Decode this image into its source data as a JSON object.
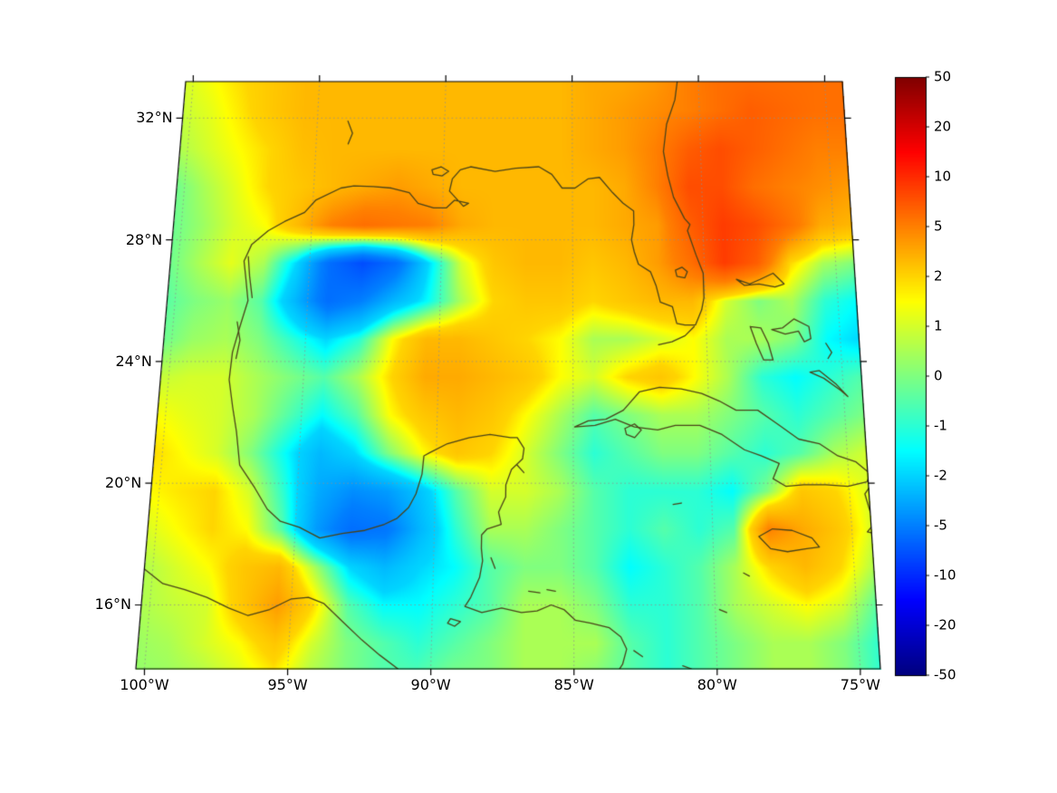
{
  "figure": {
    "background": "#ffffff"
  },
  "map": {
    "coast_color": "#4a4319",
    "gridline_color": "#8f8f8f",
    "frame_color": "#000000",
    "coastlines": [
      [
        -80.8,
        33.4,
        -80.95,
        32.6,
        -81.3,
        31.8,
        -81.45,
        30.9,
        -81.3,
        30.1,
        -81.1,
        29.4,
        -80.7,
        28.7,
        -80.5,
        28.5,
        -80.6,
        28.3,
        -80.3,
        27.5,
        -80.05,
        26.9,
        -80.05,
        26.1,
        -80.15,
        25.7,
        -80.4,
        25.2,
        -80.8,
        25.2,
        -81.1,
        25.25,
        -81.25,
        25.8,
        -81.7,
        25.95,
        -81.85,
        26.5,
        -82.05,
        26.95,
        -82.5,
        27.2,
        -82.65,
        27.6,
        -82.75,
        28.0,
        -82.65,
        28.5,
        -82.65,
        28.95,
        -83.05,
        29.2,
        -83.45,
        29.55,
        -83.95,
        30.05,
        -84.4,
        30.0,
        -84.9,
        29.7,
        -85.4,
        29.7,
        -85.8,
        30.15,
        -86.3,
        30.4,
        -87.2,
        30.35,
        -88.0,
        30.25,
        -88.95,
        30.4,
        -89.35,
        30.3,
        -89.65,
        30.0,
        -89.75,
        29.6,
        -89.2,
        29.1,
        -89.0,
        29.2,
        -89.55,
        29.3,
        -89.85,
        29.05,
        -90.35,
        29.05,
        -90.95,
        29.2,
        -91.3,
        29.55,
        -92.0,
        29.7,
        -92.7,
        29.75,
        -93.45,
        29.77,
        -93.95,
        29.7,
        -94.9,
        29.3,
        -95.3,
        28.9,
        -96.05,
        28.6,
        -96.65,
        28.3,
        -97.25,
        27.85,
        -97.5,
        27.3,
        -97.4,
        26.8,
        -97.25,
        26.0,
        -97.5,
        25.1,
        -97.7,
        24.3,
        -97.75,
        23.4,
        -97.55,
        22.5,
        -97.35,
        21.7,
        -97.15,
        20.6,
        -96.55,
        19.85,
        -96.05,
        19.15,
        -95.55,
        18.75,
        -94.85,
        18.55,
        -94.1,
        18.2,
        -93.3,
        18.35,
        -92.5,
        18.45,
        -91.8,
        18.65,
        -91.35,
        18.85,
        -90.95,
        19.2,
        -90.7,
        19.65,
        -90.5,
        20.3,
        -90.45,
        20.9,
        -90.25,
        21.0,
        -89.6,
        21.3,
        -88.8,
        21.5,
        -88.05,
        21.6,
        -87.3,
        21.5,
        -87.05,
        21.5,
        -86.8,
        21.15,
        -86.85,
        20.8,
        -87.25,
        20.45,
        -87.45,
        19.95,
        -87.45,
        19.55,
        -87.7,
        19.05,
        -87.6,
        18.65,
        -88.1,
        18.5,
        -88.3,
        18.3,
        -88.3,
        17.85,
        -88.25,
        17.45,
        -88.35,
        16.9,
        -88.65,
        16.25,
        -88.85,
        15.95,
        -88.25,
        15.75,
        -87.55,
        15.9,
        -86.85,
        15.75,
        -86.3,
        15.8,
        -85.8,
        16.0,
        -85.35,
        15.85,
        -84.95,
        15.5,
        -84.4,
        15.4,
        -83.75,
        15.25,
        -83.35,
        14.95,
        -83.15,
        14.55,
        -83.3,
        14.05,
        -83.55,
        13.7
      ],
      [
        -100.4,
        17.25,
        -99.6,
        16.7,
        -98.8,
        16.5,
        -98.0,
        16.25,
        -97.2,
        15.9,
        -96.5,
        15.65,
        -95.75,
        15.85,
        -95.0,
        16.2,
        -94.4,
        16.25,
        -93.85,
        16.05,
        -93.15,
        15.45,
        -92.45,
        14.85,
        -91.8,
        14.35,
        -91.15,
        13.9,
        -90.95,
        13.7
      ],
      [
        -84.95,
        21.85,
        -84.45,
        22.05,
        -83.8,
        22.1,
        -83.15,
        22.4,
        -82.55,
        23.0,
        -81.8,
        23.15,
        -81.0,
        23.1,
        -80.25,
        22.95,
        -79.6,
        22.7,
        -79.0,
        22.4,
        -78.2,
        22.4,
        -77.5,
        21.95,
        -76.75,
        21.45,
        -76.0,
        21.3,
        -75.35,
        20.9,
        -74.7,
        20.7,
        -74.2,
        20.3,
        -74.35,
        20.05,
        -75.05,
        19.9,
        -75.85,
        19.95,
        -76.65,
        19.95,
        -77.3,
        19.9,
        -77.75,
        20.15,
        -77.5,
        20.65,
        -78.15,
        20.9,
        -78.75,
        21.1,
        -79.55,
        21.6,
        -80.35,
        21.9,
        -81.25,
        21.9,
        -81.9,
        21.75,
        -82.75,
        21.85,
        -83.45,
        22.1,
        -84.2,
        21.9,
        -84.95,
        21.85
      ],
      [
        -83.1,
        21.8,
        -82.75,
        21.95,
        -82.5,
        21.75,
        -82.75,
        21.5,
        -83.05,
        21.6,
        -83.1,
        21.8
      ],
      [
        -78.35,
        18.25,
        -77.85,
        18.5,
        -77.15,
        18.45,
        -76.45,
        18.2,
        -76.2,
        17.9,
        -76.65,
        17.85,
        -77.35,
        17.75,
        -77.95,
        17.85,
        -78.35,
        18.25
      ],
      [
        -74.2,
        19.95,
        -74.45,
        19.65,
        -74.3,
        19.05,
        -74.2,
        18.95
      ],
      [
        -74.2,
        18.35,
        -74.45,
        18.4,
        -74.2,
        18.65
      ],
      [
        -81.4,
        19.3,
        -81.1,
        19.35
      ],
      [
        -78.8,
        26.7,
        -78.3,
        26.55,
        -77.9,
        26.7,
        -77.4,
        26.9,
        -77.0,
        26.55,
        -77.35,
        26.45,
        -77.95,
        26.55,
        -78.5,
        26.5,
        -78.8,
        26.7
      ],
      [
        -78.35,
        25.15,
        -77.95,
        25.1,
        -77.7,
        24.6,
        -77.55,
        24.05,
        -77.9,
        24.05,
        -78.15,
        24.6,
        -78.35,
        25.15
      ],
      [
        -77.55,
        25.05,
        -77.15,
        25.1,
        -76.7,
        25.4,
        -76.15,
        25.15,
        -76.1,
        24.75,
        -76.35,
        24.65,
        -76.55,
        25.0,
        -77.05,
        24.9,
        -77.55,
        25.05
      ],
      [
        -76.2,
        23.65,
        -75.7,
        23.45,
        -75.1,
        23.05,
        -74.85,
        22.85,
        -75.25,
        23.25,
        -75.85,
        23.7,
        -76.2,
        23.65
      ],
      [
        -75.55,
        24.6,
        -75.35,
        24.3,
        -75.5,
        24.1
      ],
      [
        -81.1,
        27.0,
        -80.85,
        27.1,
        -80.65,
        26.95,
        -80.75,
        26.75,
        -81.05,
        26.8,
        -81.1,
        27.0
      ],
      [
        -90.45,
        30.3,
        -90.1,
        30.4,
        -89.8,
        30.25,
        -90.05,
        30.1,
        -90.4,
        30.15,
        -90.45,
        30.3
      ],
      [
        -93.8,
        31.9,
        -93.6,
        31.5,
        -93.75,
        31.15
      ],
      [
        -87.05,
        20.6,
        -86.8,
        20.35
      ],
      [
        -86.6,
        16.45,
        -86.2,
        16.4
      ],
      [
        -85.95,
        16.5,
        -85.65,
        16.45
      ],
      [
        -89.35,
        15.55,
        -89.0,
        15.45,
        -89.2,
        15.3,
        -89.45,
        15.4,
        -89.35,
        15.55
      ],
      [
        -87.95,
        17.55,
        -87.8,
        17.2
      ],
      [
        -80.45,
        25.15,
        -80.8,
        24.85,
        -81.3,
        24.65,
        -81.8,
        24.55
      ],
      [
        -97.35,
        27.45,
        -97.25,
        26.8,
        -97.1,
        26.1
      ],
      [
        -97.6,
        25.3,
        -97.45,
        24.7,
        -97.55,
        24.1
      ],
      [
        -78.95,
        17.05,
        -78.75,
        16.95
      ],
      [
        -79.85,
        15.85,
        -79.6,
        15.75
      ],
      [
        -82.9,
        14.5,
        -82.6,
        14.3
      ],
      [
        -81.2,
        14.0,
        -80.9,
        13.9
      ]
    ]
  },
  "colorbar": {
    "tick_labels": [
      "50",
      "20",
      "10",
      "5",
      "2",
      "1",
      "0",
      "-1",
      "-2",
      "-5",
      "-10",
      "-20",
      "-50"
    ],
    "colormap": "jet"
  },
  "chart_data": {
    "type": "heatmap",
    "title": "",
    "xlabel": "",
    "ylabel": "",
    "x_name": "longitude_deg",
    "y_name": "latitude_deg",
    "projection": "conic-like trapezoid, lon -100.3..-74.3, lat 13.9..33.2",
    "extent": {
      "lon": [
        -100.3,
        -74.3
      ],
      "lat": [
        13.9,
        33.2
      ]
    },
    "colormap": "jet",
    "scale_levels": [
      -50,
      -20,
      -10,
      -5,
      -2,
      -1,
      0,
      1,
      2,
      5,
      10,
      20,
      50
    ],
    "xticks": {
      "lons": [
        -100,
        -95,
        -90,
        -85,
        -80,
        -75
      ],
      "labels": [
        "100°W",
        "95°W",
        "90°W",
        "85°W",
        "80°W",
        "75°W"
      ]
    },
    "yticks": {
      "lats": [
        32,
        28,
        24,
        20,
        16
      ],
      "labels": [
        "32°N",
        "28°N",
        "24°N",
        "20°N",
        "16°N"
      ]
    },
    "grid": {
      "lons": [
        -100.5,
        -99.25,
        -98,
        -96.75,
        -95.5,
        -94.25,
        -93,
        -91.75,
        -90.5,
        -89.25,
        -88,
        -86.75,
        -85.5,
        -84.25,
        -83,
        -81.75,
        -80.5,
        -79.25,
        -78,
        -76.75,
        -75.5,
        -74.25
      ],
      "lats": [
        33.5,
        32.25,
        31,
        29.75,
        28.5,
        27.25,
        26,
        24.75,
        23.5,
        22.25,
        21,
        19.75,
        18.5,
        17.25,
        16,
        14.75,
        13.5
      ],
      "values": [
        [
          1,
          1.5,
          2,
          2.5,
          3,
          3,
          3,
          3,
          3,
          3,
          3,
          3,
          3,
          3.5,
          3.5,
          4,
          5,
          6,
          6,
          6,
          6,
          6
        ],
        [
          0.8,
          1.2,
          1.8,
          2.5,
          3,
          3,
          3,
          3,
          3,
          3,
          3,
          3,
          3,
          3.5,
          4,
          4.5,
          5,
          6,
          7,
          6.5,
          6,
          6
        ],
        [
          0.5,
          1,
          1.5,
          2,
          2.8,
          3,
          3,
          3,
          3,
          3,
          3,
          3,
          3,
          3.5,
          4,
          5,
          7,
          8,
          7,
          6,
          5,
          5
        ],
        [
          -0.3,
          0.5,
          1.2,
          2,
          2.5,
          3,
          3.5,
          4,
          3.5,
          3,
          3,
          3,
          3,
          3,
          3.5,
          5,
          8,
          8,
          6,
          5,
          4.5,
          4
        ],
        [
          -0.3,
          0.3,
          1,
          1.5,
          3,
          5,
          6,
          5.5,
          5,
          3.5,
          3,
          3,
          3,
          3,
          3.5,
          4,
          7,
          9,
          8,
          6,
          3.5,
          3
        ],
        [
          -0.3,
          0.5,
          1.2,
          0.5,
          -2,
          -6,
          -8,
          -6,
          -2,
          1,
          2.5,
          3,
          3,
          2.5,
          3,
          4,
          6,
          9,
          7,
          2,
          0.5,
          0
        ],
        [
          -0.5,
          0,
          0.3,
          -0.5,
          -3,
          -6,
          -5,
          -3,
          -1.5,
          0.5,
          2,
          2.5,
          2.5,
          2,
          2.5,
          3,
          3,
          1,
          0,
          0.5,
          -1,
          -1.5
        ],
        [
          -0.3,
          0.3,
          0.5,
          0,
          -1,
          -2,
          -1,
          1.5,
          3,
          3,
          2.5,
          2,
          1.5,
          0.5,
          0.5,
          1,
          1.5,
          0.5,
          0.5,
          0,
          -1.5,
          -2
        ],
        [
          0.8,
          1,
          1,
          0.5,
          0,
          -0.5,
          0.5,
          2,
          3.5,
          3.5,
          3,
          2.5,
          1.5,
          1,
          2,
          2.5,
          1.5,
          0.5,
          -1,
          -1.5,
          -1,
          -0.5
        ],
        [
          1.5,
          1.2,
          1,
          0.5,
          -0.5,
          -1.5,
          -0.5,
          1.5,
          2.5,
          3,
          2.5,
          1.5,
          0.5,
          -0.5,
          0,
          0.5,
          0.5,
          0,
          -0.5,
          -1,
          -0.5,
          0
        ],
        [
          2,
          1.5,
          1,
          0,
          -1.5,
          -3,
          -2,
          0,
          1.5,
          2.5,
          2,
          1,
          0,
          -1,
          -0.5,
          0,
          0,
          -0.5,
          -1,
          -0.5,
          0.5,
          1
        ],
        [
          1.5,
          1.8,
          2,
          1,
          -1,
          -3.5,
          -4.5,
          -4,
          -2.5,
          -0.5,
          1,
          1,
          0.5,
          -0.5,
          -1,
          -1,
          -1,
          -1.5,
          0,
          2.5,
          2,
          1
        ],
        [
          1,
          1.5,
          2,
          1.5,
          -0.5,
          -4,
          -6,
          -5.5,
          -3,
          -1,
          0.5,
          0.5,
          0,
          -0.5,
          -1,
          -0.5,
          -1,
          -0.5,
          5,
          3.5,
          2.5,
          1
        ],
        [
          0.5,
          1,
          1.5,
          2.5,
          3,
          0.5,
          -2,
          -3,
          -2,
          -1.5,
          -0.5,
          0,
          0,
          -0.5,
          -1.5,
          -1,
          -0.5,
          0.5,
          2,
          3,
          2,
          0.5
        ],
        [
          0.5,
          0.8,
          1,
          2.5,
          4,
          2,
          -0.5,
          -1.5,
          -1.5,
          -1,
          -0.5,
          0.5,
          0.5,
          0,
          -1,
          -1,
          -0.5,
          0.5,
          1,
          1.5,
          1,
          -0.5
        ],
        [
          0.3,
          0.5,
          1,
          1.5,
          2.5,
          1,
          0,
          -0.5,
          -1,
          -0.5,
          0,
          0.5,
          0.5,
          0.5,
          -0.5,
          -1,
          -0.5,
          0,
          0.5,
          0.5,
          0,
          -1
        ],
        [
          0.2,
          0.3,
          0.5,
          1,
          1.5,
          0.5,
          0,
          -0.5,
          -0.5,
          0,
          0,
          0.5,
          0.5,
          0,
          -0.5,
          -1,
          -0.5,
          0,
          0.5,
          0.5,
          0,
          -1
        ]
      ]
    }
  }
}
